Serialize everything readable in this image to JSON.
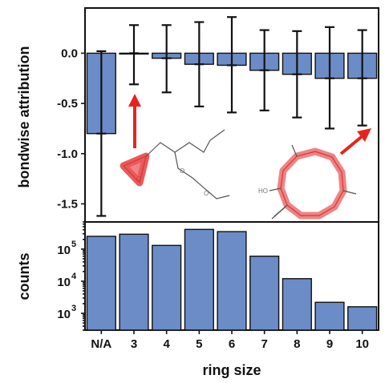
{
  "colors": {
    "bar": "#6b8cc7",
    "highlight": "#e85b5b",
    "arrow": "#e8231f"
  },
  "chart_data": [
    {
      "type": "bar",
      "panel": "top",
      "categories": [
        "N/A",
        "3",
        "4",
        "5",
        "6",
        "7",
        "8",
        "9",
        "10"
      ],
      "values": [
        -0.8,
        0.0,
        -0.05,
        -0.11,
        -0.12,
        -0.17,
        -0.21,
        -0.25,
        -0.25
      ],
      "error_low": [
        -1.62,
        -0.31,
        -0.39,
        -0.53,
        -0.59,
        -0.57,
        -0.64,
        -0.75,
        -0.72
      ],
      "error_high": [
        0.02,
        0.28,
        0.28,
        0.31,
        0.36,
        0.23,
        0.22,
        0.26,
        0.23
      ],
      "ylabel": "bondwise attribution",
      "ylim": [
        -1.68,
        0.45
      ],
      "yticks": [
        0.0,
        -0.5,
        -1.0,
        -1.5
      ],
      "ytick_labels": [
        "0.0",
        "-0.5",
        "-1.0",
        "-1.5"
      ],
      "grid": false
    },
    {
      "type": "bar",
      "panel": "bottom",
      "categories": [
        "N/A",
        "3",
        "4",
        "5",
        "6",
        "7",
        "8",
        "9",
        "10"
      ],
      "values": [
        250000,
        290000,
        130000,
        410000,
        350000,
        60000,
        12000,
        2200,
        1600
      ],
      "ylabel": "counts",
      "xlabel": "ring size",
      "yscale": "log",
      "ylim": [
        300,
        700000
      ],
      "yticks": [
        1000,
        10000,
        100000
      ],
      "ytick_labels": [
        "10",
        "10",
        "10"
      ],
      "ytick_exponents": [
        "3",
        "4",
        "5"
      ],
      "grid": false
    }
  ],
  "molecules": {
    "left_atom_label": "O",
    "right_atom_label": "HO"
  }
}
